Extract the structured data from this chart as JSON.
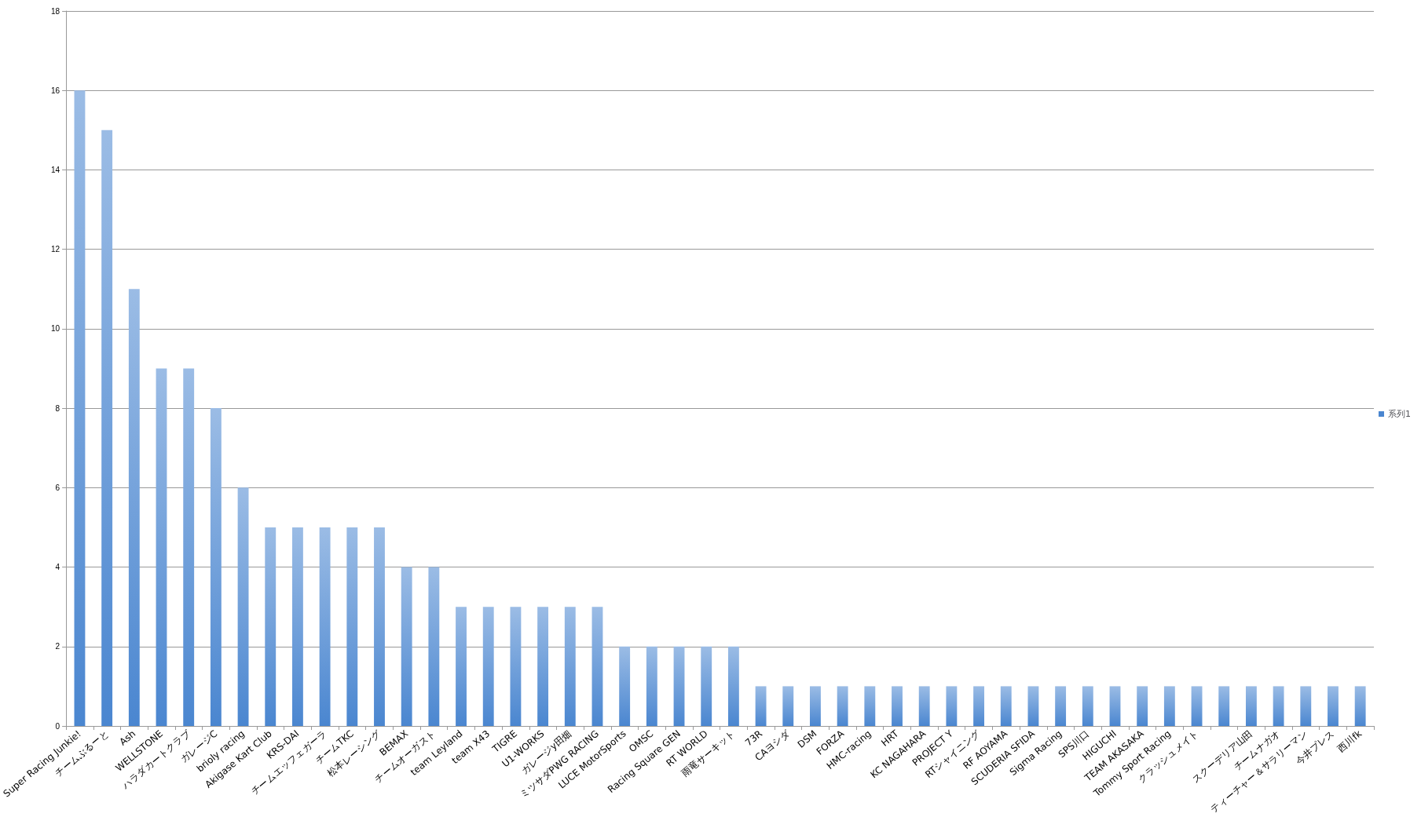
{
  "chart_data": {
    "type": "bar",
    "categories": [
      "Super Racing Junkie!",
      "チームぶるーと",
      "Ash",
      "WELLSTONE",
      "ハラダカートクラブ",
      "ガレージC",
      "brioly racing",
      "Akigase Kart Club",
      "KRS-DAI",
      "チームエッフェガーラ",
      "チームTKC",
      "松本レーシング",
      "BEMAX",
      "チームオーガスト",
      "team Leyland",
      "team X43",
      "TIGRE",
      "U1-WORKS",
      "ガレージy田畑",
      "ミツサダPWG RACING",
      "LUCE MotorSports",
      "OMSC",
      "Racing Square GEN",
      "RT WORLD",
      "雨竜サーキット",
      "73R",
      "CAヨシダ",
      "DSM",
      "FORZA",
      "HMC-racing",
      "HRT",
      "KC NAGAHARA",
      "PROJECT Y",
      "RTシャイニング",
      "RF AOYAMA",
      "SCUDERIA SFIDA",
      "Sigma Racing",
      "SPS川口",
      "HIGUCHI",
      "TEAM AKASAKA",
      "Tommy Sport Racing",
      "クラッシュメイト",
      null,
      "スクーデリア山田",
      "チームナガオ",
      "ティーチャー＆サラリーマン",
      "今井プレス",
      "西川fk"
    ],
    "series": [
      {
        "name": "系列1",
        "color": "#4a86d0",
        "values": [
          16,
          15,
          11,
          9,
          9,
          8,
          6,
          5,
          5,
          5,
          5,
          5,
          4,
          4,
          3,
          3,
          3,
          3,
          3,
          3,
          2,
          2,
          2,
          2,
          2,
          1,
          1,
          1,
          1,
          1,
          1,
          1,
          1,
          1,
          1,
          1,
          1,
          1,
          1,
          1,
          1,
          1,
          1,
          1,
          1,
          1,
          1,
          1
        ]
      }
    ],
    "ylim": [
      0,
      18
    ],
    "yticks": [
      0,
      2,
      4,
      6,
      8,
      10,
      12,
      14,
      16,
      18
    ],
    "grid": "y",
    "legend": "right"
  }
}
